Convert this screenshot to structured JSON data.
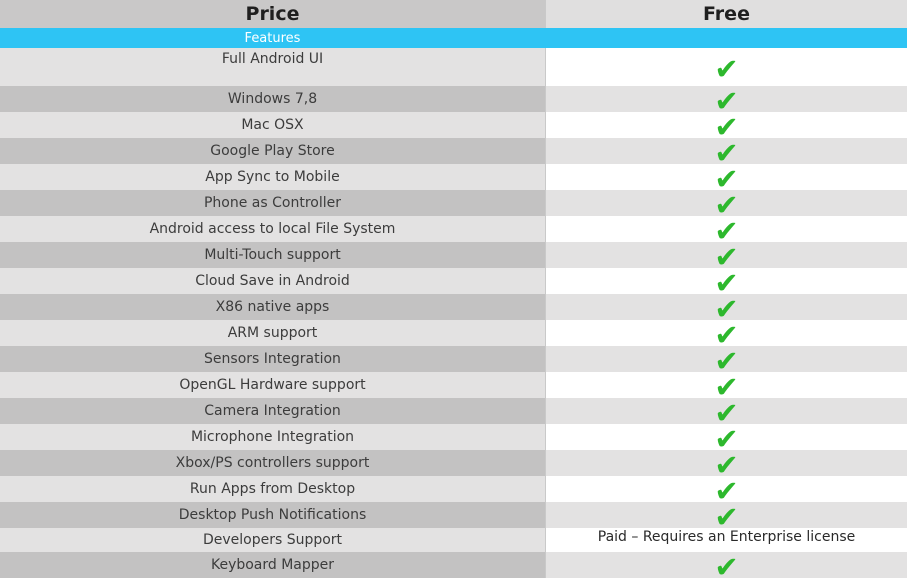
{
  "header": {
    "col1": "Price",
    "col2": "Free"
  },
  "band_label": "Features",
  "check_color": "#2db82d",
  "band_color": "#2ec4f4",
  "rows": [
    {
      "feature": "Full Android UI",
      "free": "check"
    },
    {
      "feature": "Windows 7,8",
      "free": "check"
    },
    {
      "feature": "Mac OSX",
      "free": "check"
    },
    {
      "feature": "Google Play Store",
      "free": "check"
    },
    {
      "feature": "App Sync to Mobile",
      "free": "check"
    },
    {
      "feature": "Phone as Controller",
      "free": "check"
    },
    {
      "feature": "Android access to local File System",
      "free": "check"
    },
    {
      "feature": "Multi-Touch support",
      "free": "check"
    },
    {
      "feature": "Cloud Save in Android",
      "free": "check"
    },
    {
      "feature": "X86 native apps",
      "free": "check"
    },
    {
      "feature": "ARM support",
      "free": "check"
    },
    {
      "feature": "Sensors Integration",
      "free": "check"
    },
    {
      "feature": "OpenGL Hardware support",
      "free": "check"
    },
    {
      "feature": "Camera Integration",
      "free": "check"
    },
    {
      "feature": "Microphone Integration",
      "free": "check"
    },
    {
      "feature": "Xbox/PS controllers support",
      "free": "check"
    },
    {
      "feature": "Run Apps from Desktop",
      "free": "check"
    },
    {
      "feature": "Desktop Push Notifications",
      "free": "check"
    },
    {
      "feature": "Developers Support",
      "free": "Paid – Requires an Enterprise license"
    },
    {
      "feature": "Keyboard Mapper",
      "free": "check"
    }
  ]
}
